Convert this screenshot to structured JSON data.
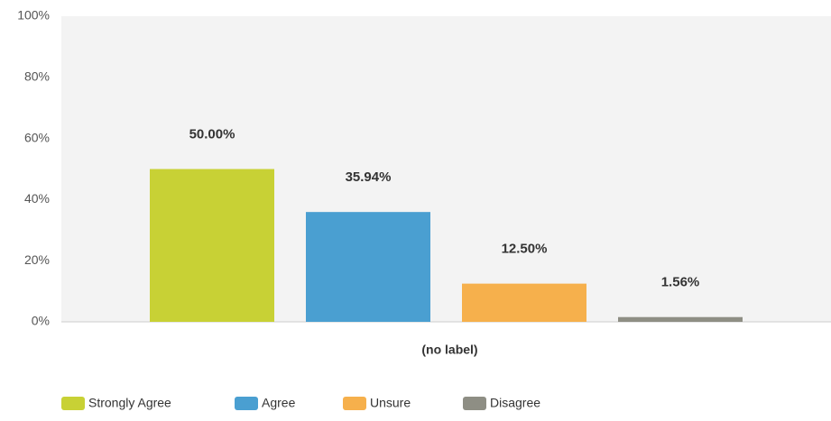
{
  "chart_data": {
    "type": "bar",
    "categories": [
      "(no label)"
    ],
    "series": [
      {
        "name": "Strongly Agree",
        "color": "#c8d135",
        "values": [
          50
        ],
        "value_labels": [
          "50.00%"
        ]
      },
      {
        "name": "Agree",
        "color": "#4a9fd1",
        "values": [
          35.94
        ],
        "value_labels": [
          "35.94%"
        ]
      },
      {
        "name": "Unsure",
        "color": "#f6b04c",
        "values": [
          12.5
        ],
        "value_labels": [
          "12.50%"
        ]
      },
      {
        "name": "Disagree",
        "color": "#8e8e84",
        "values": [
          1.56
        ],
        "value_labels": [
          "1.56%"
        ]
      }
    ],
    "ylim": [
      0,
      100
    ],
    "yticks": [
      {
        "value": 0,
        "label": "0%"
      },
      {
        "value": 20,
        "label": "20%"
      },
      {
        "value": 40,
        "label": "40%"
      },
      {
        "value": 60,
        "label": "60%"
      },
      {
        "value": 80,
        "label": "80%"
      },
      {
        "value": 100,
        "label": "100%"
      }
    ],
    "grid": false,
    "legend": "bottom-left"
  }
}
